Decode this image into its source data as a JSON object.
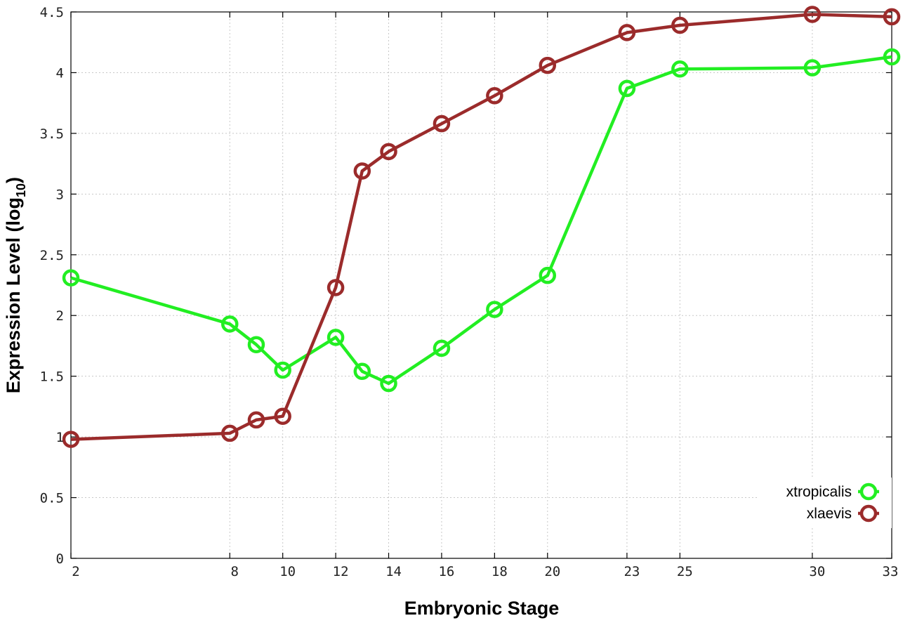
{
  "chart_data": {
    "type": "line",
    "title": "",
    "xlabel": "Embryonic Stage",
    "ylabel_main": "Expression Level (log",
    "ylabel_sub": "10",
    "ylabel_close": ")",
    "x_categories": [
      "2",
      "8",
      "10",
      "12",
      "14",
      "16",
      "18",
      "20",
      "23",
      "25",
      "30",
      "33"
    ],
    "x": [
      2,
      8,
      9,
      10,
      12,
      13,
      14,
      16,
      18,
      20,
      23,
      25,
      30,
      33
    ],
    "xlim": [
      2,
      33
    ],
    "ylim": [
      0,
      4.5
    ],
    "y_ticks": [
      "0",
      "0.5",
      "1",
      "1.5",
      "2",
      "2.5",
      "3",
      "3.5",
      "4",
      "4.5"
    ],
    "grid": true,
    "legend_position": "bottom-right",
    "series": [
      {
        "name": "xtropicalis",
        "color": "#22ee22",
        "values": [
          2.31,
          1.93,
          1.76,
          1.55,
          1.82,
          1.54,
          1.44,
          1.73,
          2.05,
          2.33,
          3.87,
          4.03,
          4.04,
          4.13
        ]
      },
      {
        "name": "xlaevis",
        "color": "#9b2b2b",
        "values": [
          0.98,
          1.03,
          1.14,
          1.17,
          2.23,
          3.19,
          3.35,
          3.58,
          3.81,
          4.06,
          4.33,
          4.39,
          4.48,
          4.46
        ]
      }
    ]
  }
}
